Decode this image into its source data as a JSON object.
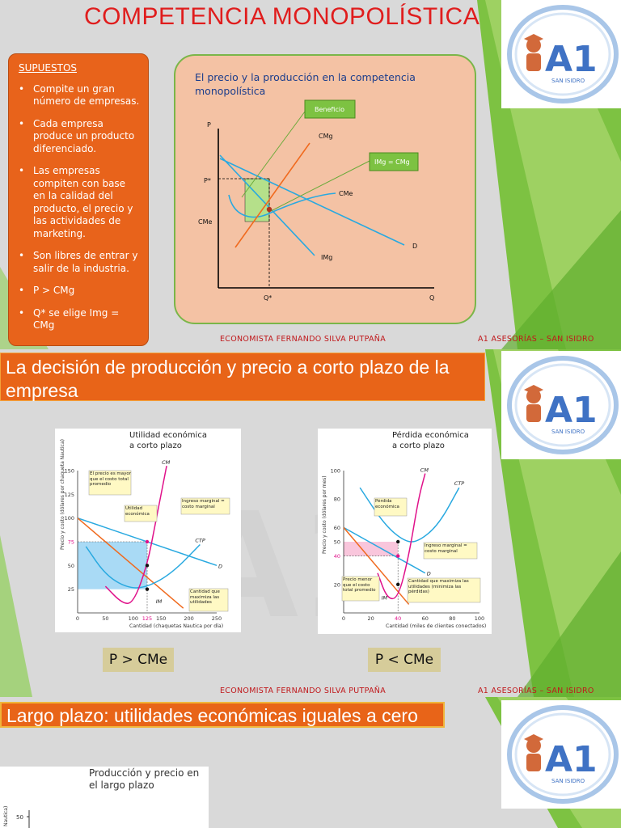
{
  "slide1": {
    "title": "COMPETENCIA MONOPOLÍSTICA",
    "assumptions_heading": "SUPUESTOS",
    "assumptions": [
      "Compite un gran número de empresas.",
      "Cada empresa produce un producto diferenciado.",
      "Las empresas compiten con base en la calidad del producto, el precio y las actividades de marketing.",
      "Son libres de entrar y salir de la industria.",
      "P > CMg",
      "Q* se elige Img = CMg"
    ],
    "graph": {
      "title": "El precio y la producción en la competencia monopolística",
      "labels": {
        "y_axis": "P",
        "x_axis": "Q",
        "p_star": "P*",
        "cme_level": "CMe",
        "q_star": "Q*",
        "cmg_curve": "CMg",
        "cme_curve": "CMe",
        "d_curve": "D",
        "img_curve": "IMg",
        "beneficio_box": "Beneficio",
        "img_cmg_box": "IMg = CMg"
      }
    },
    "footer_left": "ECONOMISTA FERNANDO SILVA PUTPAÑA",
    "footer_right": "A1 ASESORÍAS – SAN ISIDRO"
  },
  "logo": {
    "letters": "A1",
    "subtitle": "SAN ISIDRO",
    "colors": {
      "primary": "#3f72c4",
      "accent": "#d2693a",
      "ring": "#a9c6e8"
    }
  },
  "slide2": {
    "banner": "La decisión de producción y precio a corto plazo de la empresa",
    "chart_left": {
      "title_line1": "Utilidad económica",
      "title_line2": "a corto plazo",
      "ylabel": "Precio y costo (dólares por chaqueta Nautica)",
      "xlabel": "Cantidad (chaquetas Nautica por día)",
      "labels": {
        "cm": "CM",
        "ctp": "CTP",
        "d": "D",
        "im": "IM",
        "note_price": "El precio es mayor que el costo total promedio",
        "note_profit": "Utilidad económica",
        "note_mr_mc": "Ingreso marginal = costo marginal",
        "note_qty": "Cantidad que maximiza las utilidades"
      }
    },
    "chart_right": {
      "title_line1": "Pérdida económica",
      "title_line2": "a corto plazo",
      "ylabel": "Precio y costo (dólares por mes)",
      "xlabel": "Cantidad (miles de clientes conectados)",
      "labels": {
        "cm": "CM",
        "ctp": "CTP",
        "d": "D",
        "im": "IM",
        "note_loss": "Pérdida económica",
        "note_mr_mc": "Ingreso marginal = costo marginal",
        "note_price": "Precio menor que el costo total promedio",
        "note_qty": "Cantidad que maximiza las utilidades (minimiza las pérdidas)"
      }
    },
    "badge_left": "P > CMe",
    "badge_right": "P < CMe",
    "footer_left": "ECONOMISTA FERNANDO SILVA PUTPAÑA",
    "footer_right": "A1 ASESORÍAS – SAN ISIDRO"
  },
  "slide3": {
    "banner": "Largo plazo: utilidades económicas iguales a cero",
    "chart_title_line1": "Producción y precio en",
    "chart_title_line2": "el largo plazo",
    "ylabel_fragment": "Nautica)",
    "y_tick": "50"
  },
  "chart_data": [
    {
      "type": "line",
      "title": "Utilidad económica a corto plazo",
      "xlabel": "Cantidad (chaquetas Nautica por día)",
      "ylabel": "Precio y costo (dólares por chaqueta Nautica)",
      "xlim": [
        0,
        250
      ],
      "ylim": [
        0,
        150
      ],
      "x_ticks": [
        0,
        50,
        100,
        125,
        150,
        200,
        250
      ],
      "y_ticks": [
        25,
        50,
        75,
        100,
        125,
        150
      ],
      "series": [
        {
          "name": "D",
          "x": [
            0,
            250
          ],
          "y": [
            100,
            50
          ]
        },
        {
          "name": "IM",
          "x": [
            0,
            190
          ],
          "y": [
            100,
            5
          ]
        },
        {
          "name": "CTP",
          "x": [
            15,
            50,
            90,
            125,
            170,
            220
          ],
          "y": [
            70,
            40,
            26,
            27,
            42,
            72
          ]
        },
        {
          "name": "CM",
          "x": [
            50,
            80,
            100,
            125,
            140,
            160
          ],
          "y": [
            28,
            10,
            10,
            50,
            95,
            155
          ]
        }
      ],
      "highlights": {
        "price": 75,
        "cost": 25,
        "quantity": 125,
        "mr_mc": 50
      }
    },
    {
      "type": "line",
      "title": "Pérdida económica a corto plazo",
      "xlabel": "Cantidad (miles de clientes conectados)",
      "ylabel": "Precio y costo (dólares por mes)",
      "xlim": [
        0,
        100
      ],
      "ylim": [
        0,
        100
      ],
      "x_ticks": [
        0,
        20,
        40,
        60,
        80,
        100
      ],
      "y_ticks": [
        20,
        40,
        50,
        60,
        80,
        100
      ],
      "series": [
        {
          "name": "D",
          "x": [
            0,
            60
          ],
          "y": [
            60,
            28
          ]
        },
        {
          "name": "IM",
          "x": [
            0,
            48
          ],
          "y": [
            60,
            6
          ]
        },
        {
          "name": "CTP",
          "x": [
            12,
            30,
            45,
            55,
            70,
            85
          ],
          "y": [
            88,
            62,
            50,
            50,
            62,
            88
          ]
        },
        {
          "name": "CM",
          "x": [
            25,
            32,
            40,
            48,
            55,
            60
          ],
          "y": [
            28,
            10,
            10,
            40,
            80,
            98
          ]
        }
      ],
      "highlights": {
        "price": 40,
        "cost": 50,
        "quantity": 40,
        "mr_mc": 20
      }
    }
  ]
}
